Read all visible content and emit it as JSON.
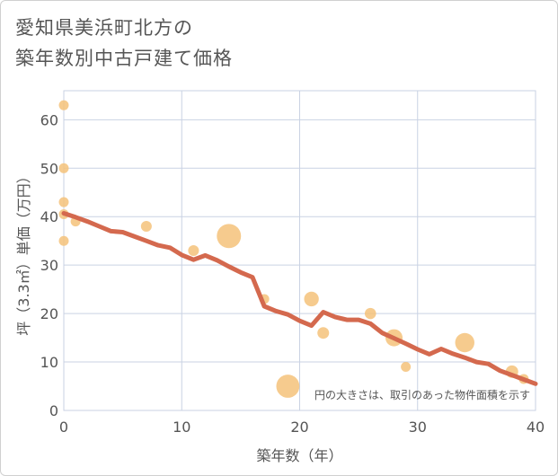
{
  "title": {
    "line1": "愛知県美浜町北方の",
    "line2": "築年数別中古戸建て価格"
  },
  "chart_data": {
    "type": "scatter",
    "title": "愛知県美浜町北方の築年数別中古戸建て価格",
    "xlabel": "築年数（年）",
    "ylabel": "坪（3.3㎡）単価（万円）",
    "xlim": [
      0,
      40
    ],
    "ylim": [
      0,
      66
    ],
    "xticks": [
      0,
      10,
      20,
      30,
      40
    ],
    "yticks": [
      0,
      10,
      20,
      30,
      40,
      50,
      60
    ],
    "grid": true,
    "note": "円の大きさは、取引のあった物件面積を示す",
    "colors": {
      "bubble": "#f5c27a",
      "line": "#d4694e",
      "grid": "#c9d2e3"
    },
    "bubbles": [
      {
        "x": 0,
        "y": 63,
        "size": 1
      },
      {
        "x": 0,
        "y": 50,
        "size": 1
      },
      {
        "x": 0,
        "y": 43,
        "size": 1
      },
      {
        "x": 0,
        "y": 40.5,
        "size": 1
      },
      {
        "x": 0,
        "y": 35,
        "size": 1
      },
      {
        "x": 1,
        "y": 39,
        "size": 1
      },
      {
        "x": 7,
        "y": 38,
        "size": 1.2
      },
      {
        "x": 11,
        "y": 33,
        "size": 1.2
      },
      {
        "x": 14,
        "y": 36,
        "size": 6
      },
      {
        "x": 17,
        "y": 23,
        "size": 1
      },
      {
        "x": 19,
        "y": 5,
        "size": 5.5
      },
      {
        "x": 21,
        "y": 23,
        "size": 2.2
      },
      {
        "x": 22,
        "y": 16,
        "size": 1.4
      },
      {
        "x": 26,
        "y": 20,
        "size": 1.3
      },
      {
        "x": 28,
        "y": 15,
        "size": 3
      },
      {
        "x": 29,
        "y": 9,
        "size": 1
      },
      {
        "x": 34,
        "y": 14,
        "size": 3.8
      },
      {
        "x": 38,
        "y": 8,
        "size": 1.6
      },
      {
        "x": 39,
        "y": 6.5,
        "size": 1
      }
    ],
    "trend": {
      "x": [
        0,
        1,
        2,
        3,
        4,
        5,
        6,
        7,
        8,
        9,
        10,
        11,
        12,
        13,
        14,
        15,
        16,
        17,
        18,
        19,
        20,
        21,
        22,
        23,
        24,
        25,
        26,
        27,
        28,
        29,
        30,
        31,
        32,
        33,
        34,
        35,
        36,
        37,
        38,
        39,
        40
      ],
      "y": [
        40.7,
        39.9,
        39.0,
        38.0,
        37.0,
        36.8,
        35.9,
        35.0,
        34.1,
        33.6,
        32.1,
        31.1,
        32.0,
        31.0,
        29.7,
        28.5,
        27.5,
        21.5,
        20.5,
        19.8,
        18.5,
        17.5,
        20.3,
        19.3,
        18.7,
        18.7,
        17.9,
        16.0,
        14.9,
        13.8,
        12.6,
        11.6,
        12.7,
        11.7,
        10.9,
        10.0,
        9.6,
        8.2,
        7.3,
        6.4,
        5.5
      ]
    }
  }
}
